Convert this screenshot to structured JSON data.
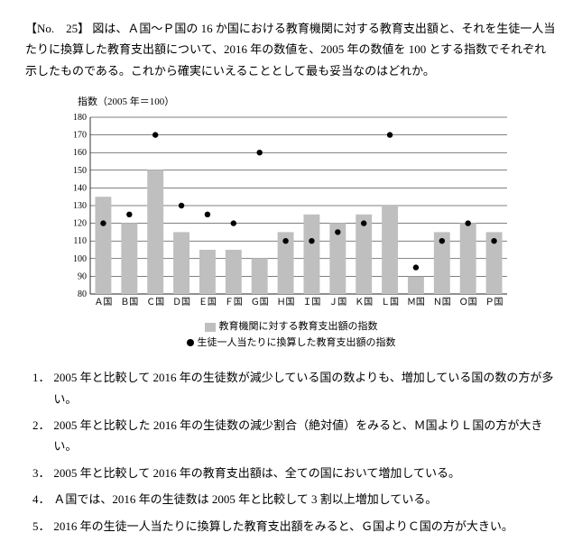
{
  "question": {
    "number_label": "【No.　25】",
    "body": "図は、Ａ国～Ｐ国の 16 か国における教育機関に対する教育支出額と、それを生徒一人当たりに換算した教育支出額について、2016 年の数値を、2005 年の数値を 100 とする指数でそれぞれ示したものである。これから確実にいえることとして最も妥当なのはどれか。"
  },
  "chart": {
    "axis_label": "指数（2005 年＝100）",
    "type": "bar+scatter",
    "ylim": [
      80,
      180
    ],
    "yticks": [
      80,
      90,
      100,
      110,
      120,
      130,
      140,
      150,
      160,
      170,
      180
    ],
    "categories": [
      "Ａ国",
      "Ｂ国",
      "Ｃ国",
      "Ｄ国",
      "Ｅ国",
      "Ｆ国",
      "Ｇ国",
      "Ｈ国",
      "Ｉ国",
      "Ｊ国",
      "Ｋ国",
      "Ｌ国",
      "Ｍ国",
      "Ｎ国",
      "Ｏ国",
      "Ｐ国"
    ],
    "bars": [
      135,
      120,
      150,
      115,
      105,
      105,
      100,
      115,
      125,
      120,
      125,
      130,
      90,
      115,
      120,
      115
    ],
    "points": [
      120,
      125,
      170,
      130,
      125,
      120,
      160,
      110,
      110,
      115,
      120,
      170,
      95,
      110,
      120,
      110
    ],
    "bar_color": "#bfbfbf",
    "point_color": "#000000",
    "grid_color": "#000000",
    "tick_fontsize": 10,
    "bar_width_ratio": 0.62,
    "legend": {
      "bar": "教育機関に対する教育支出額の指数",
      "point": "生徒一人当たりに換算した教育支出額の指数"
    }
  },
  "choices": [
    {
      "n": "1．",
      "t": "2005 年と比較して 2016 年の生徒数が減少している国の数よりも、増加している国の数の方が多い。"
    },
    {
      "n": "2．",
      "t": "2005 年と比較した 2016 年の生徒数の減少割合（絶対値）をみると、Ｍ国よりＬ国の方が大きい。"
    },
    {
      "n": "3．",
      "t": "2005 年と比較して 2016 年の教育支出額は、全ての国において増加している。"
    },
    {
      "n": "4．",
      "t": "Ａ国では、2016 年の生徒数は 2005 年と比較して 3 割以上増加している。"
    },
    {
      "n": "5．",
      "t": "2016 年の生徒一人当たりに換算した教育支出額をみると、Ｇ国よりＣ国の方が大きい。"
    }
  ]
}
